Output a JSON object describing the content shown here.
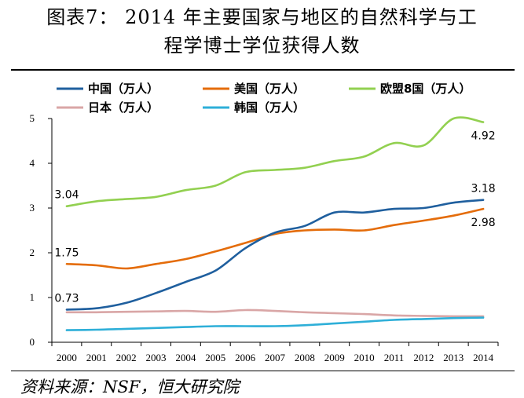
{
  "title": {
    "line1": "图表7：  2014 年主要国家与地区的自然科学与工",
    "line2": "程学博士学位获得人数"
  },
  "source": "资料来源：NSF，恒大研究院",
  "chart_data": {
    "type": "line",
    "x": [
      "2000",
      "2001",
      "2002",
      "2003",
      "2004",
      "2005",
      "2006",
      "2007",
      "2008",
      "2009",
      "2010",
      "2011",
      "2012",
      "2013",
      "2014"
    ],
    "ylim": [
      0,
      5
    ],
    "yticks": [
      "0",
      "1",
      "2",
      "3",
      "4",
      "5"
    ],
    "grid": false,
    "legend_position": "top",
    "series": [
      {
        "name": "中国（万人）",
        "color": "#1f5f9e",
        "values": [
          0.73,
          0.76,
          0.88,
          1.1,
          1.35,
          1.6,
          2.1,
          2.45,
          2.6,
          2.9,
          2.9,
          2.98,
          3.0,
          3.12,
          3.18
        ]
      },
      {
        "name": "美国（万人）",
        "color": "#e46c0a",
        "values": [
          1.75,
          1.72,
          1.65,
          1.75,
          1.86,
          2.03,
          2.22,
          2.42,
          2.5,
          2.52,
          2.5,
          2.62,
          2.72,
          2.83,
          2.98
        ]
      },
      {
        "name": "欧盟8国（万人）",
        "color": "#92d050",
        "values": [
          3.04,
          3.15,
          3.2,
          3.25,
          3.4,
          3.5,
          3.8,
          3.85,
          3.9,
          4.05,
          4.15,
          4.45,
          4.4,
          5.0,
          4.92
        ]
      },
      {
        "name": "日本（万人）",
        "color": "#d9a6a6",
        "values": [
          0.67,
          0.67,
          0.68,
          0.69,
          0.7,
          0.68,
          0.72,
          0.7,
          0.67,
          0.65,
          0.63,
          0.6,
          0.59,
          0.58,
          0.58
        ]
      },
      {
        "name": "韩国（万人）",
        "color": "#2eafd8",
        "values": [
          0.27,
          0.28,
          0.3,
          0.32,
          0.34,
          0.36,
          0.36,
          0.36,
          0.38,
          0.42,
          0.46,
          0.5,
          0.52,
          0.54,
          0.55
        ]
      }
    ],
    "data_labels": [
      {
        "series": 0,
        "index": 0,
        "text": "0.73",
        "place": "above"
      },
      {
        "series": 0,
        "index": 14,
        "text": "3.18",
        "place": "above"
      },
      {
        "series": 1,
        "index": 0,
        "text": "1.75",
        "place": "above"
      },
      {
        "series": 1,
        "index": 14,
        "text": "2.98",
        "place": "below"
      },
      {
        "series": 2,
        "index": 0,
        "text": "3.04",
        "place": "above"
      },
      {
        "series": 2,
        "index": 14,
        "text": "4.92",
        "place": "below"
      }
    ]
  }
}
